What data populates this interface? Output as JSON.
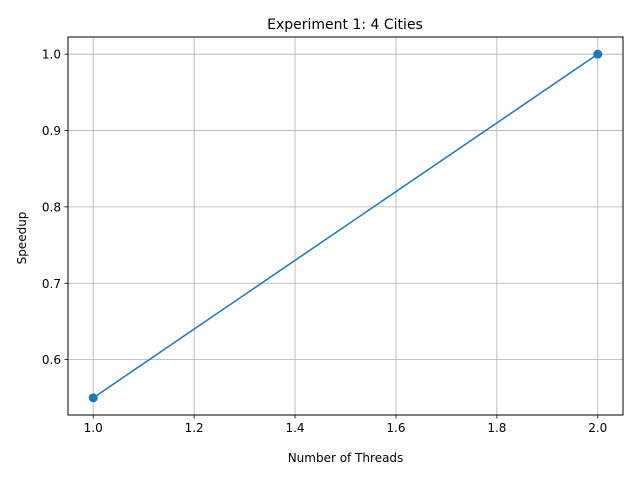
{
  "chart_data": {
    "type": "line",
    "title": "Experiment 1: 4 Cities",
    "xlabel": "Number of Threads",
    "ylabel": "Speedup",
    "x": [
      1.0,
      2.0
    ],
    "series": [
      {
        "values": [
          0.55,
          1.0
        ],
        "color": "#1f77b4",
        "marker": "circle"
      }
    ],
    "xlim": [
      0.95,
      2.05
    ],
    "ylim": [
      0.5275,
      1.0225
    ],
    "xticks": [
      1.0,
      1.2,
      1.4,
      1.6,
      1.8,
      2.0
    ],
    "xtick_labels": [
      "1.0",
      "1.2",
      "1.4",
      "1.6",
      "1.8",
      "2.0"
    ],
    "yticks": [
      0.6,
      0.7,
      0.8,
      0.9,
      1.0
    ],
    "ytick_labels": [
      "0.6",
      "0.7",
      "0.8",
      "0.9",
      "1.0"
    ],
    "grid": true,
    "grid_color": "#b0b0b0"
  }
}
